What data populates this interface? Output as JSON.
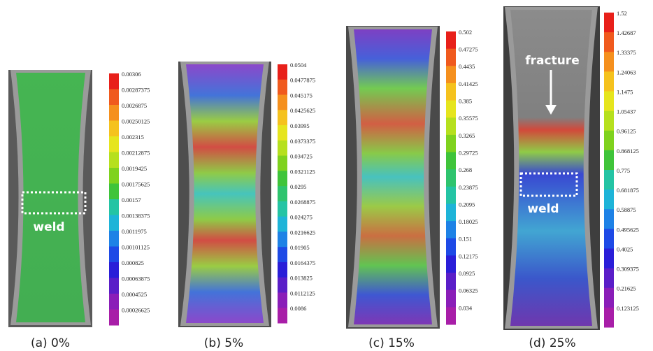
{
  "panels": [
    {
      "caption": "(a) 0%",
      "annotations": [
        "weld"
      ],
      "scale_labels": [
        "0.00306",
        "0.00287375",
        "0.0026875",
        "0.00250125",
        "0.002315",
        "0.00212875",
        "0.0019425",
        "0.00175625",
        "0.00157",
        "0.00138375",
        "0.0011975",
        "0.00101125",
        "0.000825",
        "0.00063875",
        "0.0004525",
        "0.00026625"
      ]
    },
    {
      "caption": "(b) 5%",
      "annotations": [],
      "scale_labels": [
        "0.0504",
        "0.0477875",
        "0.045175",
        "0.0425625",
        "0.03995",
        "0.0373375",
        "0.034725",
        "0.0321125",
        "0.0295",
        "0.0268875",
        "0.024275",
        "0.0216625",
        "0.01905",
        "0.0164375",
        "0.013825",
        "0.0112125",
        "0.0086"
      ]
    },
    {
      "caption": "(c) 15%",
      "annotations": [],
      "scale_labels": [
        "0.502",
        "0.47275",
        "0.4435",
        "0.41425",
        "0.385",
        "0.35575",
        "0.3265",
        "0.29725",
        "0.268",
        "0.23875",
        "0.2095",
        "0.18025",
        "0.151",
        "0.12175",
        "0.0925",
        "0.06325",
        "0.034"
      ]
    },
    {
      "caption": "(d) 25%",
      "annotations": [
        "fracture",
        "weld"
      ],
      "scale_labels": [
        "1.52",
        "1.42687",
        "1.33375",
        "1.24063",
        "1.1475",
        "1.05437",
        "0.96125",
        "0.868125",
        "0.775",
        "0.681875",
        "0.58875",
        "0.495625",
        "0.4025",
        "0.309375",
        "0.21625",
        "0.123125"
      ]
    }
  ]
}
